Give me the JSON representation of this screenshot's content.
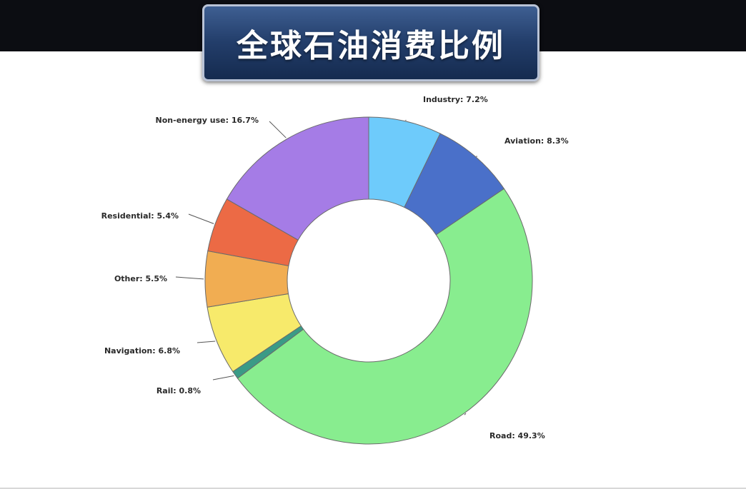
{
  "title": "全球石油消费比例",
  "chart_data": {
    "type": "pie",
    "donut": true,
    "slices": [
      {
        "label": "Industry: 7.2%",
        "value": 7.2,
        "color": "#6ecbfb"
      },
      {
        "label": "Aviation: 8.3%",
        "value": 8.3,
        "color": "#4a70c9"
      },
      {
        "label": "Road: 49.3%",
        "value": 49.3,
        "color": "#88ed8f"
      },
      {
        "label": "Rail: 0.8%",
        "value": 0.8,
        "color": "#3a9b86"
      },
      {
        "label": "Navigation: 6.8%",
        "value": 6.8,
        "color": "#f7ea6b"
      },
      {
        "label": "Other: 5.5%",
        "value": 5.5,
        "color": "#f1ad52"
      },
      {
        "label": "Residential: 5.4%",
        "value": 5.4,
        "color": "#ec6a45"
      },
      {
        "label": "Non-energy use: 16.7%",
        "value": 16.7,
        "color": "#a57ce6"
      }
    ]
  }
}
